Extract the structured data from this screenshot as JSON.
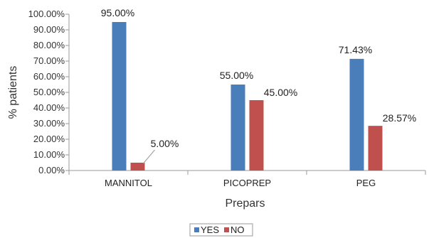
{
  "chart_data": {
    "type": "bar",
    "title": "",
    "xlabel": "Prepars",
    "ylabel": "% patients",
    "categories": [
      "MANNITOL",
      "PICOPREP",
      "PEG"
    ],
    "series": [
      {
        "name": "YES",
        "values": [
          95.0,
          55.0,
          71.43
        ],
        "color": "#4a7ebb",
        "labels": [
          "95.00%",
          "55.00%",
          "71.43%"
        ]
      },
      {
        "name": "NO",
        "values": [
          5.0,
          45.0,
          28.57
        ],
        "color": "#c0504d",
        "labels": [
          "5.00%",
          "45.00%",
          "28.57%"
        ]
      }
    ],
    "ylim": [
      0,
      100
    ],
    "yticks": [
      0,
      10,
      20,
      30,
      40,
      50,
      60,
      70,
      80,
      90,
      100
    ],
    "ytick_labels": [
      "0.00%",
      "10.00%",
      "20.00%",
      "30.00%",
      "40.00%",
      "50.00%",
      "60.00%",
      "70.00%",
      "80.00%",
      "90.00%",
      "100.00%"
    ],
    "grid": false,
    "legend": "bottom"
  }
}
